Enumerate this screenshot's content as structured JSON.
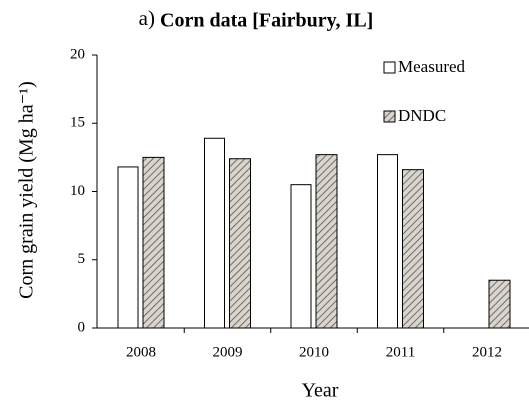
{
  "chart_data": {
    "type": "bar",
    "panel_label": "a)",
    "title": "Corn data [Fairbury, IL]",
    "x_label": "Year",
    "y_label": "Corn grain yield (Mg ha⁻¹)",
    "categories": [
      "2008",
      "2009",
      "2010",
      "2011",
      "2012"
    ],
    "series": [
      {
        "name": "Measured",
        "color": "#ffffff",
        "values": [
          11.8,
          13.9,
          10.5,
          12.7,
          null
        ]
      },
      {
        "name": "DNDC",
        "color": "#d9d4cc",
        "pattern": "hatched",
        "values": [
          12.5,
          12.4,
          12.7,
          11.6,
          3.5
        ]
      }
    ],
    "ylim": [
      0,
      20
    ],
    "yticks": [
      0,
      5,
      10,
      15,
      20
    ],
    "grid": false,
    "legend": "top-right"
  }
}
